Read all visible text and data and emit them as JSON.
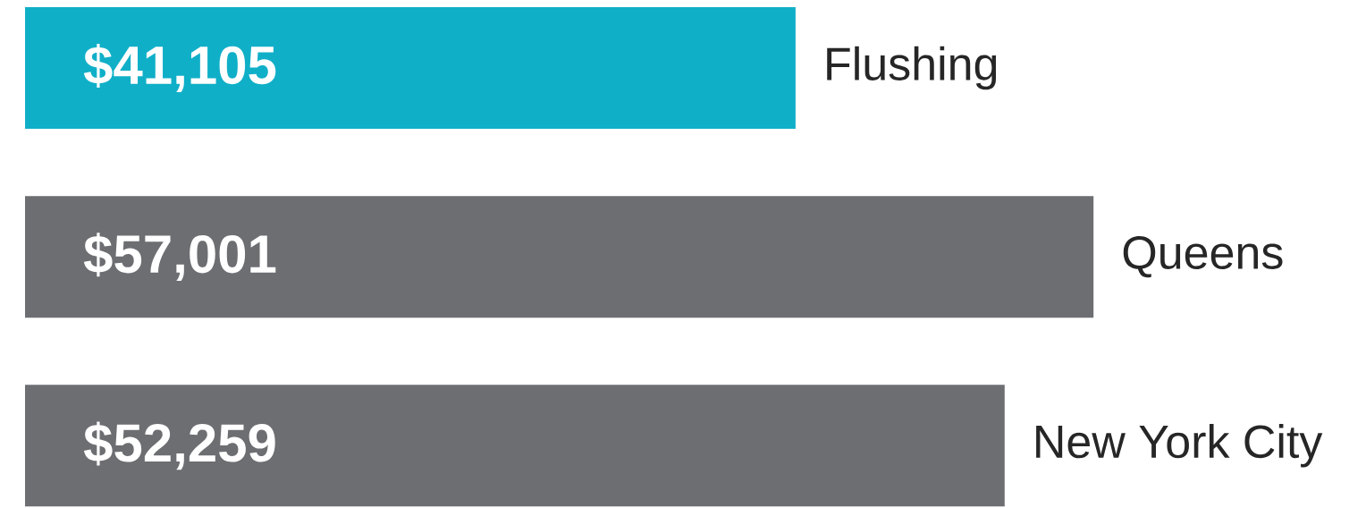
{
  "chart_data": {
    "type": "bar",
    "orientation": "horizontal",
    "categories": [
      "Flushing",
      "Queens",
      "New York City"
    ],
    "values": [
      41105,
      57001,
      52259
    ],
    "colors": [
      "#10afc8",
      "#6d6e72",
      "#6d6e72"
    ],
    "value_labels": [
      "$41,105",
      "$57,001",
      "$52,259"
    ]
  }
}
